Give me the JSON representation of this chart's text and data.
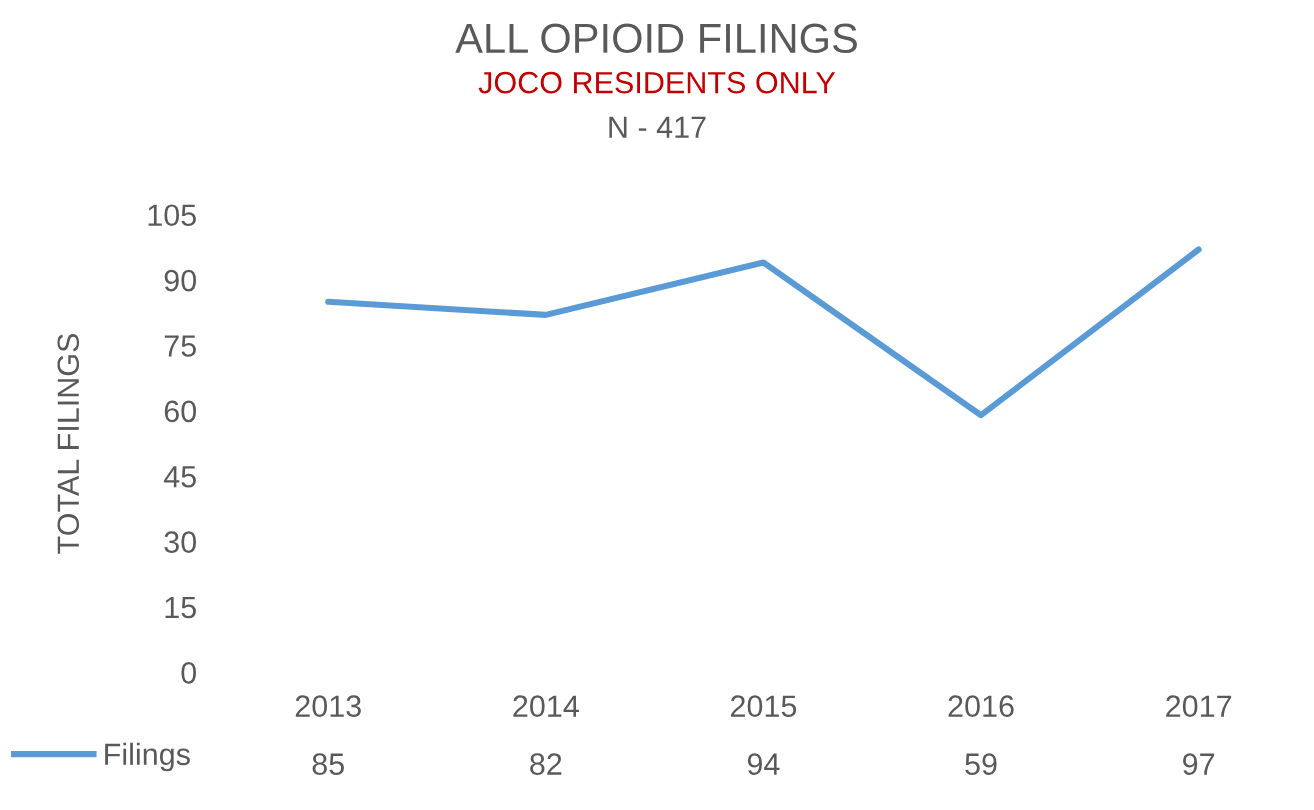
{
  "chart_data": {
    "type": "line",
    "title": "ALL OPIOID FILINGS",
    "subtitle": "JOCO RESIDENTS ONLY",
    "annotations": [
      "N - 417"
    ],
    "ylabel": "TOTAL FILINGS",
    "categories": [
      "2013",
      "2014",
      "2015",
      "2016",
      "2017"
    ],
    "series": [
      {
        "name": "Filings",
        "color": "#5b9bd5",
        "values": [
          85,
          82,
          94,
          59,
          97
        ]
      }
    ],
    "ylim": [
      0,
      105
    ],
    "yticks": [
      0,
      15,
      30,
      45,
      60,
      75,
      90,
      105
    ],
    "grid": false,
    "legend": "bottom left",
    "data_labels": true,
    "marker": "none",
    "line_style": "solid"
  }
}
